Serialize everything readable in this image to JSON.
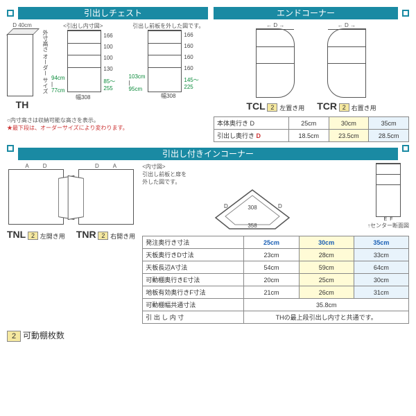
{
  "headers": {
    "chest": "引出しチェスト",
    "end": "エンドコーナー",
    "incorner": "引出し付きインコーナー"
  },
  "chest": {
    "widthLabel": "40cm",
    "depthLetter": "D",
    "diagramCaption": "<引出し内寸図>",
    "diagramSub": "引出し前板を外した図です。",
    "outerHeightLabel": "外寸高さ\nオーダー\nサイズ",
    "heightRange1a": "94cm",
    "heightRange1b": "77cm",
    "heightRange2a": "103cm",
    "heightRange2b": "95cm",
    "inner_dims": [
      "166",
      "100",
      "100",
      "130",
      "85〜255",
      "幅308"
    ],
    "inner_dims2": [
      "166",
      "160",
      "160",
      "160",
      "145〜225",
      "幅308"
    ],
    "model": "TH",
    "noteLine1": "○内寸高さは収納可能な高さを表示。",
    "noteLine2": "★最下段は、オーダーサイズにより変わります。"
  },
  "end": {
    "model_left": "TCL",
    "model_right": "TCR",
    "badge": "2",
    "left_label": "左置き用",
    "right_label": "右置き用",
    "table": {
      "row1_label": "本体奥行き D",
      "row2_label": "引出し奥行き",
      "row2_letter": "D",
      "headers": [
        "25cm",
        "30cm",
        "35cm"
      ],
      "row2_vals": [
        "18.5cm",
        "23.5cm",
        "28.5cm"
      ]
    }
  },
  "incorner": {
    "model_left": "TNL",
    "model_right": "TNR",
    "badge": "2",
    "left_label": "左開き用",
    "right_label": "右開き用",
    "topview_caption": "<内寸図>",
    "topview_sub": "引出し前板と扉を\n外した図です。",
    "topview_vals": {
      "inner": "308",
      "outer": "358"
    },
    "section_caption": "↑センター断面図",
    "section_letters": [
      "E",
      "F"
    ],
    "table": {
      "rows": [
        {
          "label": "発注奥行き寸法",
          "vals": [
            "25cm",
            "30cm",
            "35cm"
          ],
          "bold": true
        },
        {
          "label": "天板奥行きD寸法",
          "vals": [
            "23cm",
            "28cm",
            "33cm"
          ]
        },
        {
          "label": "天板長辺A寸法",
          "vals": [
            "54cm",
            "59cm",
            "64cm"
          ]
        },
        {
          "label": "可動棚奥行きE寸法",
          "vals": [
            "20cm",
            "25cm",
            "30cm"
          ]
        },
        {
          "label": "地板有効奥行きF寸法",
          "vals": [
            "21cm",
            "26cm",
            "31cm"
          ]
        },
        {
          "label": "可動棚幅共通寸法",
          "full": "35.8cm"
        },
        {
          "label": "引 出 し 内 寸",
          "full": "THの最上段引出し内寸と共通です。"
        }
      ]
    }
  },
  "footer": {
    "badge_num": "2",
    "label": "可動棚枚数"
  },
  "colors": {
    "teal": "#1a8aa3",
    "yellow": "#fffbd6",
    "blue_bg": "#e8f3fb",
    "green": "#0a8a3a",
    "red": "#c33",
    "badge": "#f5e8a0"
  }
}
